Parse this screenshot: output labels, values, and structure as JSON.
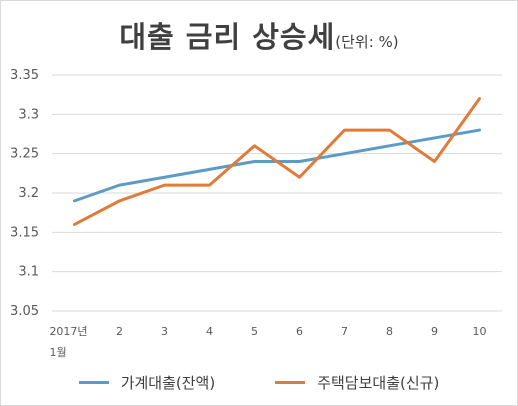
{
  "chart_data": {
    "type": "line",
    "title": "대출 금리 상승세",
    "title_unit": "(단위: %)",
    "categories": [
      "2017년 1월",
      "2",
      "3",
      "4",
      "5",
      "6",
      "7",
      "8",
      "9",
      "10"
    ],
    "category_label_lines": [
      [
        "2017년",
        "1월"
      ],
      [
        "2"
      ],
      [
        "3"
      ],
      [
        "4"
      ],
      [
        "5"
      ],
      [
        "6"
      ],
      [
        "7"
      ],
      [
        "8"
      ],
      [
        "9"
      ],
      [
        "10"
      ]
    ],
    "ylim": [
      3.05,
      3.35
    ],
    "yticks": [
      "3.05",
      "3.1",
      "3.15",
      "3.2",
      "3.25",
      "3.3",
      "3.35"
    ],
    "grid": true,
    "legend_position": "bottom",
    "series": [
      {
        "name": "가계대출(잔액)",
        "color": "#5b9bc5",
        "values": [
          3.19,
          3.21,
          3.22,
          3.23,
          3.24,
          3.24,
          3.25,
          3.26,
          3.27,
          3.28
        ]
      },
      {
        "name": "주택담보대출(신규)",
        "color": "#e07b39",
        "values": [
          3.16,
          3.19,
          3.21,
          3.21,
          3.26,
          3.22,
          3.28,
          3.28,
          3.24,
          3.32
        ]
      }
    ]
  }
}
